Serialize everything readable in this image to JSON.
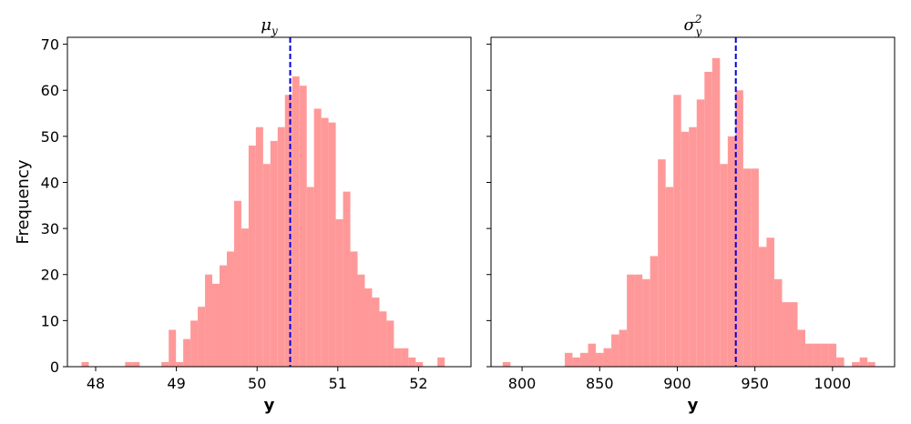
{
  "chart_data": [
    {
      "type": "bar",
      "title_base": "μ",
      "title_sub": "y",
      "title_sup": "",
      "xlabel": "y",
      "ylabel": "Frequency",
      "xlim": [
        47.65,
        52.65
      ],
      "ylim": [
        0,
        71.5
      ],
      "xticks": [
        48,
        49,
        50,
        51,
        52
      ],
      "yticks": [
        0,
        10,
        20,
        30,
        40,
        50,
        60,
        70
      ],
      "bar_color": "#ff9999",
      "line_color": "#0000dd",
      "bin_width": 0.0904,
      "mean_line": 50.41,
      "bins": [
        {
          "x": 47.87,
          "value": 1
        },
        {
          "x": 48.41,
          "value": 1
        },
        {
          "x": 48.5,
          "value": 1
        },
        {
          "x": 48.86,
          "value": 1
        },
        {
          "x": 48.95,
          "value": 8
        },
        {
          "x": 49.04,
          "value": 1
        },
        {
          "x": 49.13,
          "value": 6
        },
        {
          "x": 49.22,
          "value": 10
        },
        {
          "x": 49.31,
          "value": 13
        },
        {
          "x": 49.4,
          "value": 20
        },
        {
          "x": 49.49,
          "value": 18
        },
        {
          "x": 49.58,
          "value": 22
        },
        {
          "x": 49.67,
          "value": 25
        },
        {
          "x": 49.76,
          "value": 36
        },
        {
          "x": 49.85,
          "value": 30
        },
        {
          "x": 49.94,
          "value": 48
        },
        {
          "x": 50.03,
          "value": 52
        },
        {
          "x": 50.12,
          "value": 44
        },
        {
          "x": 50.21,
          "value": 49
        },
        {
          "x": 50.3,
          "value": 52
        },
        {
          "x": 50.39,
          "value": 59
        },
        {
          "x": 50.48,
          "value": 63
        },
        {
          "x": 50.57,
          "value": 61
        },
        {
          "x": 50.66,
          "value": 39
        },
        {
          "x": 50.75,
          "value": 56
        },
        {
          "x": 50.84,
          "value": 54
        },
        {
          "x": 50.93,
          "value": 53
        },
        {
          "x": 51.02,
          "value": 32
        },
        {
          "x": 51.11,
          "value": 38
        },
        {
          "x": 51.2,
          "value": 25
        },
        {
          "x": 51.29,
          "value": 20
        },
        {
          "x": 51.38,
          "value": 17
        },
        {
          "x": 51.47,
          "value": 15
        },
        {
          "x": 51.56,
          "value": 12
        },
        {
          "x": 51.65,
          "value": 10
        },
        {
          "x": 51.74,
          "value": 4
        },
        {
          "x": 51.83,
          "value": 4
        },
        {
          "x": 51.92,
          "value": 2
        },
        {
          "x": 52.01,
          "value": 1
        },
        {
          "x": 52.28,
          "value": 2
        }
      ]
    },
    {
      "type": "bar",
      "title_base": "σ",
      "title_sub": "y",
      "title_sup": "2",
      "xlabel": "y",
      "ylabel": "",
      "xlim": [
        780,
        1040
      ],
      "ylim": [
        0,
        71.5
      ],
      "xticks": [
        800,
        850,
        900,
        950,
        1000
      ],
      "yticks": [
        0,
        10,
        20,
        30,
        40,
        50,
        60,
        70
      ],
      "bar_color": "#ff9999",
      "line_color": "#0000dd",
      "bin_width": 5.0,
      "mean_line": 937.7,
      "bins": [
        {
          "x": 790,
          "value": 1
        },
        {
          "x": 830,
          "value": 3
        },
        {
          "x": 835,
          "value": 2
        },
        {
          "x": 840,
          "value": 3
        },
        {
          "x": 845,
          "value": 5
        },
        {
          "x": 850,
          "value": 3
        },
        {
          "x": 855,
          "value": 4
        },
        {
          "x": 860,
          "value": 7
        },
        {
          "x": 865,
          "value": 8
        },
        {
          "x": 870,
          "value": 20
        },
        {
          "x": 875,
          "value": 20
        },
        {
          "x": 880,
          "value": 19
        },
        {
          "x": 885,
          "value": 24
        },
        {
          "x": 890,
          "value": 45
        },
        {
          "x": 895,
          "value": 39
        },
        {
          "x": 900,
          "value": 59
        },
        {
          "x": 905,
          "value": 51
        },
        {
          "x": 910,
          "value": 52
        },
        {
          "x": 915,
          "value": 58
        },
        {
          "x": 920,
          "value": 64
        },
        {
          "x": 925,
          "value": 67
        },
        {
          "x": 930,
          "value": 44
        },
        {
          "x": 935,
          "value": 50
        },
        {
          "x": 940,
          "value": 60
        },
        {
          "x": 945,
          "value": 43
        },
        {
          "x": 950,
          "value": 43
        },
        {
          "x": 955,
          "value": 26
        },
        {
          "x": 960,
          "value": 28
        },
        {
          "x": 965,
          "value": 19
        },
        {
          "x": 970,
          "value": 14
        },
        {
          "x": 975,
          "value": 14
        },
        {
          "x": 980,
          "value": 8
        },
        {
          "x": 985,
          "value": 5
        },
        {
          "x": 990,
          "value": 5
        },
        {
          "x": 995,
          "value": 5
        },
        {
          "x": 1000,
          "value": 5
        },
        {
          "x": 1005,
          "value": 2
        },
        {
          "x": 1015,
          "value": 1
        },
        {
          "x": 1020,
          "value": 2
        },
        {
          "x": 1025,
          "value": 1
        }
      ]
    }
  ]
}
